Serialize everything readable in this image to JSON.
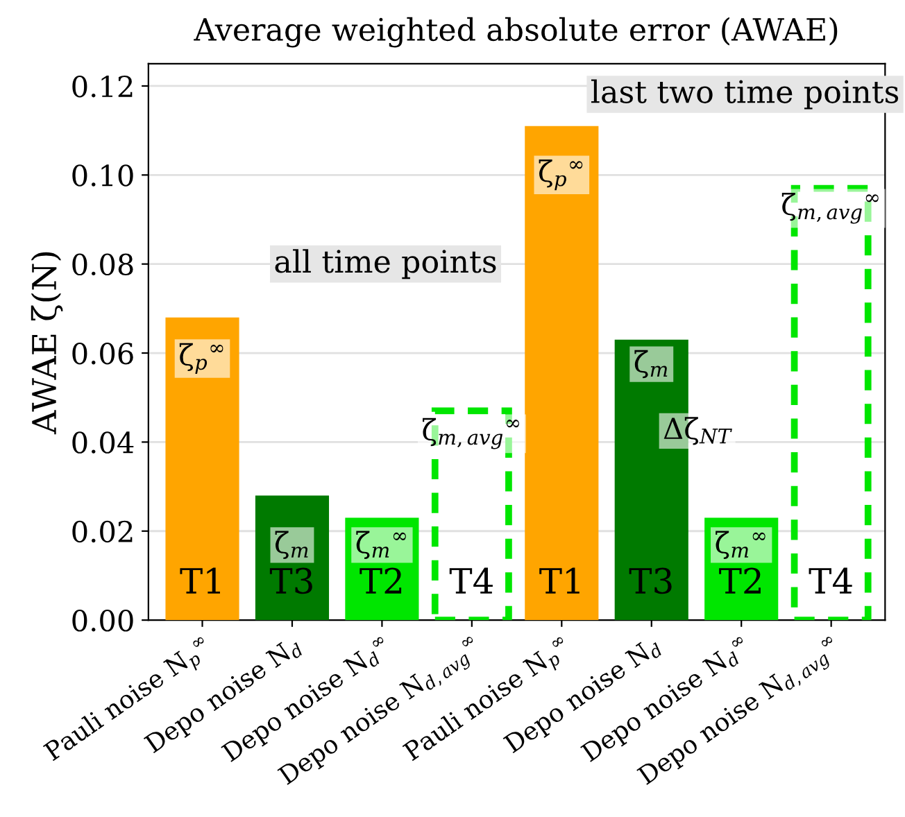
{
  "chart_data": {
    "type": "bar",
    "title": "Average weighted absolute error (AWAE)",
    "ylabel": "AWAE ζ(N)",
    "categories": [
      "Pauli noise N$_{p}$$^{∞}$",
      "Depo noise N$_{d}$",
      "Depo noise N$_{d}$$^{∞}$",
      "Depo noise N$_{d,avg}$$^{∞}$",
      "Pauli noise N$_{p}$$^{∞}$",
      "Depo noise N$_{d}$",
      "Depo noise N$_{d}$$^{∞}$",
      "Depo noise N$_{d,avg}$$^{∞}$"
    ],
    "series": [
      {
        "colors": [
          "#ffa500",
          "#007a00",
          "#00e600",
          null,
          "#ffa500",
          "#007a00",
          "#00e600",
          null
        ],
        "values": [
          0.068,
          0.028,
          0.023,
          null,
          0.111,
          0.063,
          0.023,
          null
        ]
      },
      {
        "color": "#00e600",
        "line_style": "dashed",
        "values": [
          null,
          null,
          null,
          0.047,
          null,
          null,
          null,
          0.097
        ]
      }
    ],
    "ylim": [
      0,
      0.125
    ],
    "yticks": [
      {
        "value": 0,
        "label": "0.00"
      },
      {
        "value": 0.02,
        "label": "0.02"
      },
      {
        "value": 0.04,
        "label": "0.04"
      },
      {
        "value": 0.06,
        "label": "0.06"
      },
      {
        "value": 0.08,
        "label": "0.08"
      },
      {
        "value": 0.1,
        "label": "0.10"
      },
      {
        "value": 0.12,
        "label": "0.12"
      }
    ],
    "grid": "y",
    "annotations": [
      "all time points",
      "last two time points",
      "T1",
      "T3",
      "T2",
      "T4",
      "T1",
      "T3",
      "T2",
      "T4",
      "ζ$_{p}$$^{∞}$",
      "ζ$_{m}$",
      "ζ$_{m}$$^{∞}$",
      "ζ$_{m,avg}$$^{∞}$",
      "ζ$_{p}$$^{∞}$",
      "ζ$_{m}$",
      "ζ$_{m}$$^{∞}$",
      "ζ$_{m,avg}$$^{∞}$",
      "Δζ$_{NT}$"
    ]
  }
}
